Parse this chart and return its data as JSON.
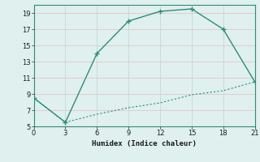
{
  "x": [
    0,
    3,
    6,
    9,
    12,
    15,
    18,
    21
  ],
  "y_upper": [
    8.5,
    5.5,
    14.0,
    18.0,
    19.2,
    19.5,
    17.0,
    10.5
  ],
  "y_lower": [
    8.5,
    5.5,
    6.5,
    7.3,
    7.9,
    8.9,
    9.4,
    10.5
  ],
  "line_color": "#2e8b7a",
  "bg_color": "#dff0ee",
  "grid_color_v": "#c8d8d5",
  "grid_color_h": "#e8c8c8",
  "xlabel": "Humidex (Indice chaleur)",
  "xlim": [
    0,
    21
  ],
  "ylim": [
    5,
    20
  ],
  "xticks": [
    0,
    3,
    6,
    9,
    12,
    15,
    18,
    21
  ],
  "yticks": [
    5,
    7,
    9,
    11,
    13,
    15,
    17,
    19
  ],
  "marker": "+"
}
